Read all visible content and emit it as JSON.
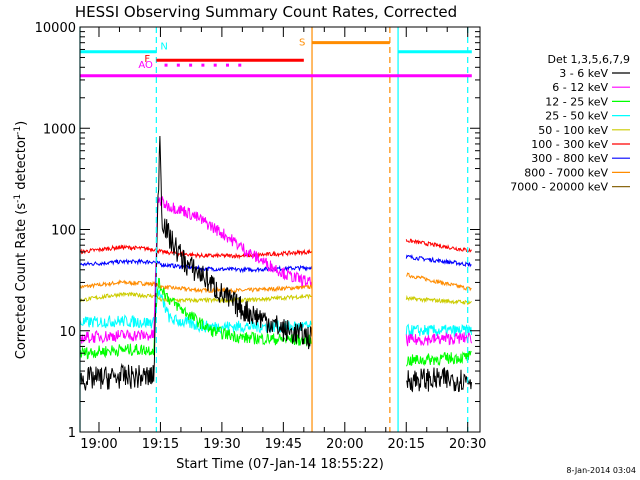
{
  "chart_data": {
    "type": "line",
    "title": "HESSI Observing Summary Count Rates, Corrected",
    "xlabel": "Start Time (07-Jan-14 18:55:22)",
    "ylabel": "Corrected Count Rate (s⁻¹ detector⁻¹)",
    "ylabel_parts": [
      "Corrected Count Rate (s",
      "-1",
      " detector",
      "-1",
      ")"
    ],
    "yscale": "log",
    "ylim": [
      1,
      10000
    ],
    "xlim": [
      "18:55:22",
      "20:33:00"
    ],
    "yticks": [
      {
        "value": 1,
        "label": "1"
      },
      {
        "value": 10,
        "label": "10"
      },
      {
        "value": 100,
        "label": "100"
      },
      {
        "value": 1000,
        "label": "1000"
      },
      {
        "value": 10000,
        "label": "10000"
      }
    ],
    "xticks": [
      "19:00",
      "19:15",
      "19:30",
      "19:45",
      "20:00",
      "20:15",
      "20:30"
    ],
    "legend_title": "Det 1,3,5,6,7,9",
    "legend_position": "right",
    "date_stamp": "8-Jan-2014 03:04",
    "gaps": [
      [
        "19:52",
        "20:15"
      ]
    ],
    "vertical_lines": [
      {
        "time": "18:55:22",
        "color": "#00ffff",
        "style": "solid"
      },
      {
        "time": "19:14",
        "color": "#00ffff",
        "style": "dashed"
      },
      {
        "time": "19:52",
        "color": "#ff8c00",
        "style": "solid"
      },
      {
        "time": "20:11",
        "color": "#ff8c00",
        "style": "dashed"
      },
      {
        "time": "20:13",
        "color": "#00ffff",
        "style": "solid"
      },
      {
        "time": "20:30",
        "color": "#00ffff",
        "style": "dashed"
      }
    ],
    "flags": [
      {
        "label": "N",
        "color": "#00ffff",
        "level": 5700,
        "segments": [
          [
            "18:55:22",
            "19:14"
          ],
          [
            "20:13",
            "20:31"
          ]
        ]
      },
      {
        "label": "F",
        "color": "#ff0000",
        "level": 4700,
        "segments": [
          [
            "19:14",
            "19:50"
          ]
        ]
      },
      {
        "label": "AO",
        "color": "#ff00ff",
        "level": 4200,
        "segments": [],
        "dotted": [
          "19:14",
          "19:36"
        ]
      },
      {
        "label": "S",
        "color": "#ff8c00",
        "level": 7000,
        "segments": [
          [
            "19:52",
            "20:11"
          ]
        ]
      },
      {
        "label": "",
        "color": "#ff00ff",
        "level": 3300,
        "segments": [
          [
            "18:55:22",
            "20:31"
          ]
        ]
      }
    ],
    "flag_labels": [
      "N",
      "F",
      "AO",
      "S"
    ],
    "series": [
      {
        "name": "3 - 6 keV",
        "color": "#000000",
        "points": [
          [
            0,
            3.3
          ],
          [
            10,
            3.5
          ],
          [
            18,
            3.5
          ],
          [
            19,
            150
          ],
          [
            19.5,
            1000
          ],
          [
            20,
            130
          ],
          [
            22,
            80
          ],
          [
            26,
            45
          ],
          [
            30,
            35
          ],
          [
            35,
            22
          ],
          [
            40,
            16
          ],
          [
            45,
            13
          ],
          [
            50,
            10
          ],
          [
            55,
            9
          ],
          [
            56,
            8.5
          ],
          [
            78,
            3.3
          ],
          [
            95,
            3.3
          ]
        ]
      },
      {
        "name": "6 - 12 keV",
        "color": "#ff00ff",
        "points": [
          [
            0,
            8.5
          ],
          [
            10,
            9
          ],
          [
            18,
            9
          ],
          [
            19,
            200
          ],
          [
            21,
            175
          ],
          [
            26,
            150
          ],
          [
            31,
            115
          ],
          [
            36,
            85
          ],
          [
            41,
            60
          ],
          [
            46,
            45
          ],
          [
            51,
            35
          ],
          [
            56,
            30
          ],
          [
            78,
            8
          ],
          [
            95,
            8.5
          ]
        ]
      },
      {
        "name": "12 - 25 keV",
        "color": "#00ff00",
        "points": [
          [
            0,
            6
          ],
          [
            10,
            6.5
          ],
          [
            18,
            6.5
          ],
          [
            19,
            30
          ],
          [
            22,
            20
          ],
          [
            27,
            14
          ],
          [
            32,
            10
          ],
          [
            40,
            8.5
          ],
          [
            56,
            8
          ],
          [
            78,
            5
          ],
          [
            95,
            5.5
          ]
        ]
      },
      {
        "name": "25 - 50 keV",
        "color": "#00ffff",
        "points": [
          [
            0,
            12
          ],
          [
            10,
            12.5
          ],
          [
            18,
            12
          ],
          [
            19,
            25
          ],
          [
            22,
            13
          ],
          [
            30,
            11
          ],
          [
            40,
            11
          ],
          [
            56,
            11
          ],
          [
            78,
            10
          ],
          [
            95,
            10
          ]
        ]
      },
      {
        "name": "50 - 100 keV",
        "color": "#cccc00",
        "points": [
          [
            0,
            20
          ],
          [
            10,
            23
          ],
          [
            18,
            22
          ],
          [
            20,
            20
          ],
          [
            30,
            20
          ],
          [
            40,
            20
          ],
          [
            56,
            22
          ],
          [
            78,
            21
          ],
          [
            95,
            19
          ]
        ]
      },
      {
        "name": "100 - 300 keV",
        "color": "#ff0000",
        "points": [
          [
            0,
            60
          ],
          [
            10,
            67
          ],
          [
            18,
            64
          ],
          [
            20,
            60
          ],
          [
            30,
            55
          ],
          [
            40,
            55
          ],
          [
            56,
            60
          ],
          [
            78,
            80
          ],
          [
            95,
            62
          ]
        ]
      },
      {
        "name": "300 - 800 keV",
        "color": "#0000ff",
        "points": [
          [
            0,
            45
          ],
          [
            10,
            48
          ],
          [
            18,
            48
          ],
          [
            20,
            45
          ],
          [
            30,
            41
          ],
          [
            40,
            40
          ],
          [
            56,
            42
          ],
          [
            78,
            55
          ],
          [
            95,
            45
          ]
        ]
      },
      {
        "name": "800 - 7000 keV",
        "color": "#ff8c00",
        "points": [
          [
            0,
            27
          ],
          [
            10,
            30
          ],
          [
            18,
            29
          ],
          [
            20,
            27
          ],
          [
            30,
            25
          ],
          [
            40,
            25
          ],
          [
            56,
            27
          ],
          [
            78,
            37
          ],
          [
            95,
            26
          ]
        ]
      },
      {
        "name": "7000 - 20000 keV",
        "color": "#8b6914",
        "points": []
      }
    ],
    "points_note": "x = minutes after 18:55:22"
  }
}
